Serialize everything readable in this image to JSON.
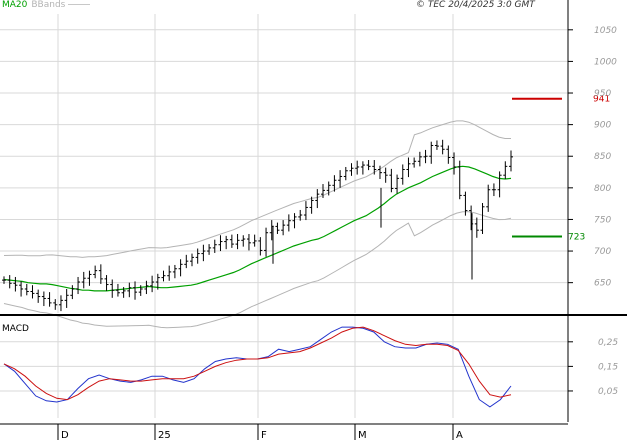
{
  "header": {
    "legend_ma": "MA20",
    "legend_bbands": "BBands",
    "copyright": "© TEC 20/4/2025 3:0 GMT"
  },
  "colors": {
    "price": "#000000",
    "ma": "#00a000",
    "bbands": "#b4b4b4",
    "grid": "#d9d9d9",
    "frame": "#000000",
    "resistance": "#cc0000",
    "support": "#008800",
    "macd": "#2233cc",
    "signal": "#cc1111"
  },
  "chart_data": [
    {
      "type": "ohlc",
      "yticks": [
        650,
        700,
        750,
        800,
        850,
        900,
        950,
        1000,
        1050
      ],
      "ylim": [
        602,
        1075
      ],
      "xlabels": [
        "D",
        "25",
        "F",
        "M",
        "A"
      ],
      "series": [
        {
          "name": "MA20",
          "values": [
            655,
            654,
            653,
            652,
            650,
            649,
            648,
            648,
            647,
            645,
            643,
            641,
            640,
            638,
            638,
            637,
            637,
            637,
            638,
            639,
            640,
            641,
            642,
            643,
            644,
            643,
            642,
            642,
            643,
            644,
            645,
            646,
            648,
            651,
            654,
            657,
            660,
            663,
            666,
            670,
            675,
            680,
            684,
            688,
            692,
            696,
            700,
            704,
            708,
            711,
            714,
            717,
            719,
            723,
            728,
            733,
            738,
            743,
            748,
            752,
            756,
            762,
            768,
            775,
            783,
            790,
            795,
            800,
            804,
            808,
            813,
            818,
            822,
            826,
            830,
            833,
            834,
            833,
            830,
            826,
            822,
            818,
            815,
            814,
            815
          ]
        },
        {
          "name": "BBands",
          "values": [
            ""
          ]
        }
      ],
      "close": [
        654,
        649,
        646,
        640,
        636,
        633,
        628,
        625,
        618,
        615,
        622,
        630,
        640,
        651,
        657,
        663,
        669,
        656,
        647,
        638,
        634,
        637,
        642,
        635,
        640,
        645,
        651,
        658,
        661,
        667,
        672,
        679,
        684,
        690,
        696,
        700,
        705,
        710,
        715,
        718,
        711,
        717,
        719,
        713,
        716,
        701,
        729,
        739,
        733,
        741,
        748,
        754,
        757,
        769,
        780,
        790,
        796,
        804,
        812,
        818,
        827,
        831,
        833,
        836,
        834,
        829,
        824,
        820,
        799,
        815,
        829,
        838,
        842,
        849,
        850,
        867,
        866,
        861,
        848,
        833,
        788,
        764,
        743,
        733,
        770,
        797,
        797,
        820,
        834,
        849
      ],
      "resistance": {
        "label": "941",
        "value": 941
      },
      "support": {
        "label": "723",
        "value": 723
      }
    },
    {
      "type": "line",
      "title": "MACD",
      "yticks": [
        "0,25",
        "0,15",
        "0,05"
      ],
      "ylim": [
        -0.06,
        0.355
      ],
      "series": [
        {
          "name": "MACD",
          "values": [
            0.16,
            0.13,
            0.08,
            0.03,
            0.01,
            0.005,
            0.015,
            0.06,
            0.1,
            0.115,
            0.1,
            0.09,
            0.085,
            0.095,
            0.11,
            0.11,
            0.095,
            0.085,
            0.1,
            0.14,
            0.17,
            0.18,
            0.185,
            0.18,
            0.18,
            0.19,
            0.22,
            0.21,
            0.22,
            0.23,
            0.26,
            0.29,
            0.31,
            0.31,
            0.305,
            0.29,
            0.25,
            0.23,
            0.225,
            0.225,
            0.24,
            0.245,
            0.24,
            0.22,
            0.11,
            0.015,
            -0.015,
            0.015,
            0.07
          ]
        },
        {
          "name": "Signal",
          "values": [
            0.16,
            0.14,
            0.11,
            0.07,
            0.04,
            0.02,
            0.015,
            0.035,
            0.065,
            0.09,
            0.1,
            0.095,
            0.09,
            0.09,
            0.095,
            0.1,
            0.1,
            0.1,
            0.11,
            0.13,
            0.15,
            0.165,
            0.175,
            0.18,
            0.18,
            0.185,
            0.2,
            0.205,
            0.21,
            0.225,
            0.245,
            0.265,
            0.29,
            0.305,
            0.31,
            0.295,
            0.275,
            0.255,
            0.24,
            0.235,
            0.24,
            0.24,
            0.235,
            0.215,
            0.16,
            0.09,
            0.035,
            0.025,
            0.035
          ]
        }
      ]
    }
  ]
}
